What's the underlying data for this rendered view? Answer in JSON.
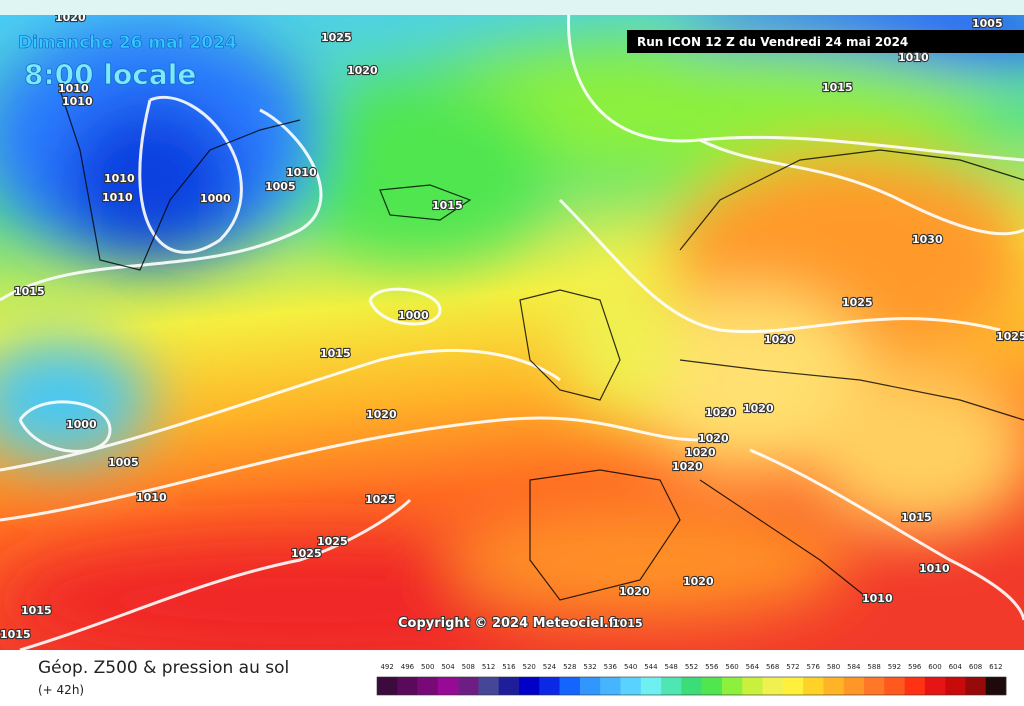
{
  "header": {
    "date": "Dimanche 26 mai 2024",
    "time": "8:00 locale",
    "run": "Run ICON 12 Z du Vendredi 24 mai 2024"
  },
  "map": {
    "isobar_labels": [
      1020,
      1010,
      1010,
      1010,
      1010,
      1000,
      1005,
      1010,
      1015,
      1025,
      1020,
      1015,
      1030,
      1025,
      1025,
      1020,
      1020,
      1020,
      1020,
      1020,
      1020,
      1015,
      1000,
      1015,
      1020,
      1000,
      1005,
      1010,
      1025,
      1025,
      1025,
      1020,
      1020,
      1015,
      1010,
      1010,
      1015,
      1015,
      1005,
      1010
    ],
    "copyright": "Copyright © 2024 Meteociel.fr",
    "copyright_tail": 1015
  },
  "legend": {
    "title": "Géop. Z500 & pression au sol",
    "lead": "(+ 42h)",
    "scale": {
      "values": [
        492,
        496,
        500,
        504,
        508,
        512,
        516,
        520,
        524,
        528,
        532,
        536,
        540,
        544,
        548,
        552,
        556,
        560,
        564,
        568,
        572,
        576,
        580,
        584,
        588,
        592,
        596,
        600,
        604,
        608,
        612
      ],
      "colors": [
        "#3c0a3c",
        "#5a0a5a",
        "#780a78",
        "#960a96",
        "#6e1e82",
        "#464696",
        "#1e1e9b",
        "#0000c8",
        "#0a28e6",
        "#1464ff",
        "#3296ff",
        "#46b4ff",
        "#5ad2ff",
        "#6ef0f0",
        "#50e6b4",
        "#3cdc78",
        "#50e650",
        "#8cf03c",
        "#c8f03c",
        "#f0f050",
        "#fff03c",
        "#ffd228",
        "#ffb428",
        "#ff9628",
        "#ff7828",
        "#ff5a1e",
        "#ff3214",
        "#e61414",
        "#c80a0a",
        "#960a0a",
        "#1e0a0a"
      ]
    }
  }
}
